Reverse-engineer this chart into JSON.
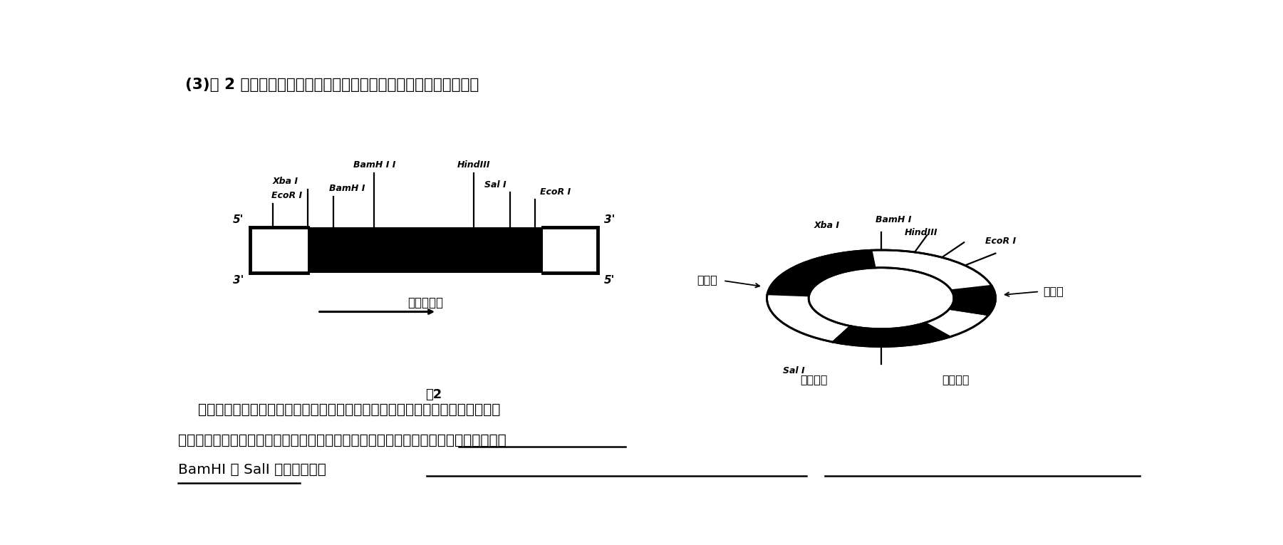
{
  "title": "(3)图 2 为目的基因、相关质粒及其上限制酶酶切位点的分布情况．",
  "fig_label": "图2",
  "gene_label": "胰岛素基因",
  "bottom1": "获取目的基因后．若要在成功构建重组表达载体的同时确保目的基因插入载体中",
  "bottom2": "的方向正确，最好选用限制酶＿＿＿＿＿切割目的基因和载体．选用的两种酶中不包含",
  "bottom3_pre": "BamHⅠ 和 SalⅠ ，原因分别为",
  "bg": "#ffffff",
  "zi_dong_zi": "自动子",
  "zhong_zhi_zi": "终止子",
  "biao_ji_ji_yin": "标记基因",
  "fu_zhi_yuan_dian": "复制原点"
}
